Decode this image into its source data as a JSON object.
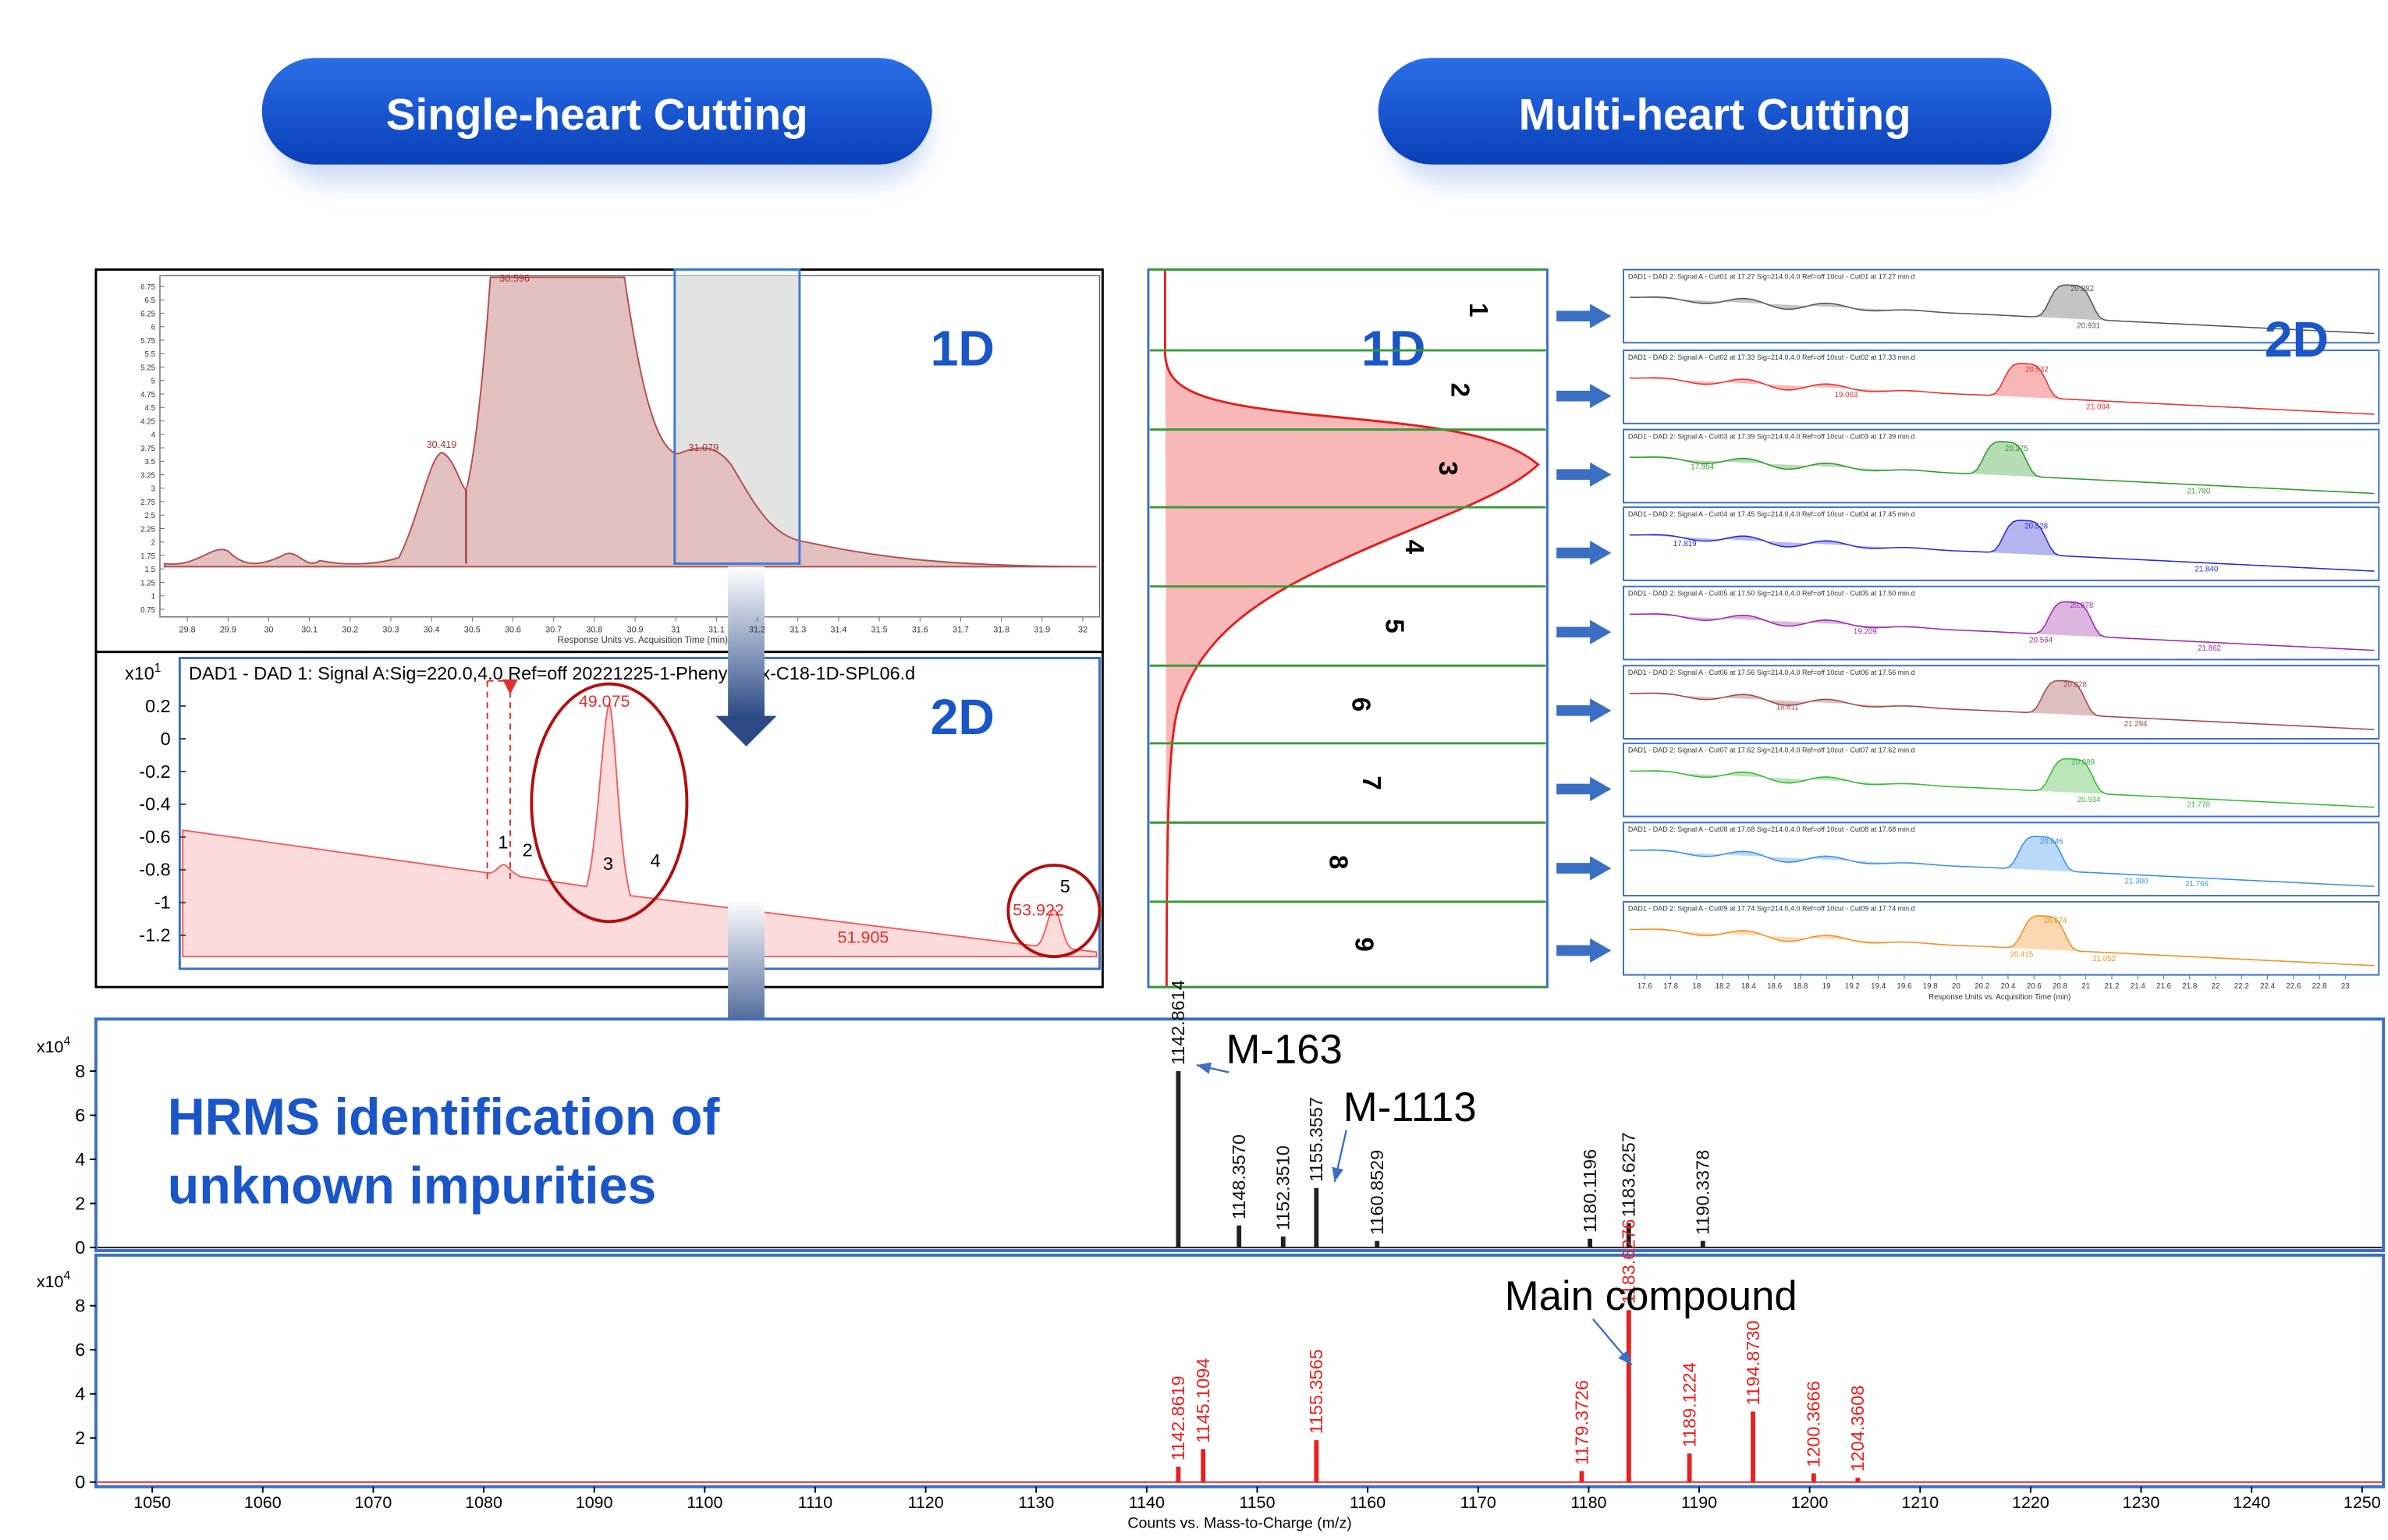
{
  "header": {
    "left_title": "Single-heart Cutting",
    "right_title": "Multi-heart Cutting"
  },
  "single": {
    "d1": {
      "label": "1D",
      "peaks": [
        "30.596",
        "30.419",
        "31.079"
      ],
      "xticks": [
        29.8,
        29.9,
        30,
        30.1,
        30.2,
        30.3,
        30.4,
        30.5,
        30.6,
        30.7,
        30.8,
        30.9,
        31,
        31.1,
        31.2,
        31.3,
        31.4,
        31.5,
        31.6,
        31.7,
        31.8,
        31.9,
        32
      ],
      "yticks": [
        6.75,
        6.5,
        6.25,
        6,
        5.75,
        5.5,
        5.25,
        5,
        4.75,
        4.5,
        4.25,
        4,
        3.75,
        3.5,
        3.25,
        3,
        2.75,
        2.5,
        2.25,
        2,
        1.75,
        1.5,
        1.25,
        1,
        0.75
      ],
      "x_axis_label": "Response Units vs. Acquisition Time (min)"
    },
    "d2": {
      "label": "2D",
      "header": "DAD1 - DAD 1: Signal A:Sig=220.0,4.0  Ref=off  20221225-1-Phenyl-Hex-C18-1D-SPL06.d",
      "y_unit": "x10",
      "y_exp": "1",
      "yticks": [
        0.2,
        0,
        -0.2,
        -0.4,
        -0.6,
        -0.8,
        -1,
        -1.2
      ],
      "peaks": [
        "49.075",
        "51.905",
        "53.922"
      ],
      "peak_numbers": [
        "1",
        "2",
        "3",
        "4",
        "5"
      ]
    }
  },
  "multi": {
    "d1": {
      "label": "1D",
      "cuts": [
        "1",
        "2",
        "3",
        "4",
        "5",
        "6",
        "7",
        "8",
        "9"
      ]
    },
    "d2": {
      "label": "2D",
      "x_axis_label": "Response Units vs. Acquisition Time (min)",
      "xticks": [
        17.6,
        17.8,
        18,
        18.2,
        18.4,
        18.6,
        18.8,
        19,
        19.2,
        19.4,
        19.6,
        19.8,
        20,
        20.2,
        20.4,
        20.6,
        20.8,
        21,
        21.2,
        21.4,
        21.6,
        21.8,
        22,
        22.2,
        22.4,
        22.6,
        22.8,
        23
      ],
      "panels": [
        {
          "header": "DAD1 - DAD 2: Signal A - Cut01 at 17.27 Sig=214.0,4.0 Ref=off 10cut - Cut01 at 17.27 min.d",
          "color": "#555555",
          "peaks": [
            "20.882",
            "20.931"
          ]
        },
        {
          "header": "DAD1 - DAD 2: Signal A - Cut02 at 17.33 Sig=214.0,4.0 Ref=off 10cut - Cut02 at 17.33 min.d",
          "color": "#e83030",
          "peaks": [
            "20.532",
            "21.004",
            "19.063"
          ]
        },
        {
          "header": "DAD1 - DAD 2: Signal A - Cut03 at 17.39 Sig=214.0,4.0 Ref=off 10cut - Cut03 at 17.39 min.d",
          "color": "#2e9a2e",
          "peaks": [
            "20.375",
            "21.780",
            "17.954"
          ]
        },
        {
          "header": "DAD1 - DAD 2: Signal A - Cut04 at 17.45 Sig=214.0,4.0 Ref=off 10cut - Cut04 at 17.45 min.d",
          "color": "#2a2ad0",
          "peaks": [
            "20.528",
            "21.840",
            "17.819"
          ]
        },
        {
          "header": "DAD1 - DAD 2: Signal A - Cut05 at 17.50 Sig=214.0,4.0 Ref=off 10cut - Cut05 at 17.50 min.d",
          "color": "#9a2aa8",
          "peaks": [
            "20.878",
            "20.564",
            "19.209",
            "21.862"
          ]
        },
        {
          "header": "DAD1 - DAD 2: Signal A - Cut06 at 17.56 Sig=214.0,4.0 Ref=off 10cut - Cut06 at 17.56 min.d",
          "color": "#a04848",
          "peaks": [
            "20.828",
            "21.294",
            "18.611"
          ]
        },
        {
          "header": "DAD1 - DAD 2: Signal A - Cut07 at 17.62 Sig=214.0,4.0 Ref=off 10cut - Cut07 at 17.62 min.d",
          "color": "#38b838",
          "peaks": [
            "20.889",
            "20.934",
            "21.778"
          ]
        },
        {
          "header": "DAD1 - DAD 2: Signal A - Cut08 at 17.68 Sig=214.0,4.0 Ref=off 10cut - Cut08 at 17.68 min.d",
          "color": "#3a8ee8",
          "peaks": [
            "20.646",
            "21.300",
            "21.766"
          ]
        },
        {
          "header": "DAD1 - DAD 2: Signal A - Cut09 at 17.74 Sig=214.0,4.0 Ref=off 10cut - Cut09 at 17.74 min.d",
          "color": "#f09020",
          "peaks": [
            "20.674",
            "21.052",
            "20.415"
          ]
        }
      ]
    }
  },
  "hrms": {
    "text_line1": "HRMS identification of",
    "text_line2": "unknown impurities",
    "y_unit": "x10",
    "y_exp": "4",
    "yticks": [
      0,
      2,
      4,
      6,
      8
    ],
    "ylim": [
      0,
      10.5
    ],
    "xlim": [
      1045,
      1252
    ],
    "xticks": [
      1050,
      1060,
      1070,
      1080,
      1090,
      1100,
      1110,
      1120,
      1130,
      1140,
      1150,
      1160,
      1170,
      1180,
      1190,
      1200,
      1210,
      1220,
      1230,
      1240,
      1250
    ],
    "x_axis_label": "Counts vs. Mass-to-Charge (m/z)",
    "spectra": [
      {
        "color": "#222222",
        "label_color": "#111111",
        "annotations": [
          {
            "text": "M-163",
            "target": "1142.8614"
          },
          {
            "text": "M-1113",
            "target": "1155.3557"
          }
        ],
        "peaks": [
          {
            "label": "1142.8614",
            "intensity": 8
          },
          {
            "label": "1148.3570",
            "intensity": 1
          },
          {
            "label": "1152.3510",
            "intensity": 0.5
          },
          {
            "label": "1155.3557",
            "intensity": 2.7
          },
          {
            "label": "1160.8529",
            "intensity": 0.3
          },
          {
            "label": "1180.1196",
            "intensity": 0.4
          },
          {
            "label": "1183.6257",
            "intensity": 1.1
          },
          {
            "label": "1190.3378",
            "intensity": 0.3
          }
        ]
      },
      {
        "color": "#e82020",
        "label_color": "#e82020",
        "annotations": [
          {
            "text": "Main compound",
            "target": "1183.6276"
          }
        ],
        "peaks": [
          {
            "label": "1142.8619",
            "intensity": 0.7
          },
          {
            "label": "1145.1094",
            "intensity": 1.5
          },
          {
            "label": "1155.3565",
            "intensity": 1.9
          },
          {
            "label": "1179.3726",
            "intensity": 0.5
          },
          {
            "label": "1183.6276",
            "intensity": 7.8
          },
          {
            "label": "1189.1224",
            "intensity": 1.3
          },
          {
            "label": "1194.8730",
            "intensity": 3.2
          },
          {
            "label": "1200.3666",
            "intensity": 0.4
          },
          {
            "label": "1204.3608",
            "intensity": 0.2
          }
        ]
      }
    ]
  }
}
